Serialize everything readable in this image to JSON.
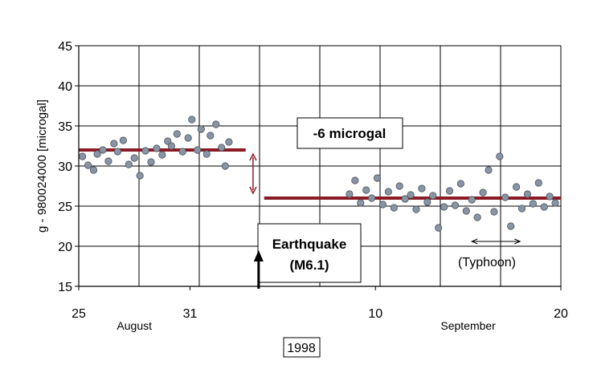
{
  "chart_data": {
    "type": "scatter",
    "title": "",
    "ylabel": "g - 980024000 [microgal]",
    "ylim": [
      15,
      45
    ],
    "yticks": [
      15,
      20,
      25,
      30,
      35,
      40,
      45
    ],
    "xlim": [
      "1998-08-25",
      "1998-09-20"
    ],
    "xticks": [
      {
        "date": "1998-08-25",
        "label": "25"
      },
      {
        "date": "1998-08-31",
        "label": "31"
      },
      {
        "date": "1998-09-10",
        "label": "10"
      },
      {
        "date": "1998-09-20",
        "label": "20"
      }
    ],
    "month_labels": [
      {
        "date": "1998-08-28",
        "label": "August"
      },
      {
        "date": "1998-09-15",
        "label": "September"
      }
    ],
    "year_label": "1998",
    "grid": true,
    "point_color": "#8a95a3",
    "mean_line_color": "#8b1a24",
    "series": [
      {
        "values": [
          [
            "1998-08-25.2",
            31.2
          ],
          [
            "1998-08-25.5",
            30.1
          ],
          [
            "1998-08-25.8",
            29.5
          ],
          [
            "1998-08-26.0",
            31.5
          ],
          [
            "1998-08-26.3",
            32.0
          ],
          [
            "1998-08-26.6",
            30.6
          ],
          [
            "1998-08-26.9",
            32.8
          ],
          [
            "1998-08-27.1",
            31.8
          ],
          [
            "1998-08-27.4",
            33.2
          ],
          [
            "1998-08-27.7",
            30.2
          ],
          [
            "1998-08-28.0",
            31.0
          ],
          [
            "1998-08-28.3",
            28.8
          ],
          [
            "1998-08-28.6",
            31.9
          ],
          [
            "1998-08-28.9",
            30.5
          ],
          [
            "1998-08-29.2",
            32.2
          ],
          [
            "1998-08-29.5",
            31.4
          ],
          [
            "1998-08-29.8",
            33.1
          ],
          [
            "1998-08-30.0",
            32.5
          ],
          [
            "1998-08-30.3",
            34.0
          ],
          [
            "1998-08-30.6",
            31.8
          ],
          [
            "1998-08-30.9",
            33.5
          ],
          [
            "1998-08-31.1",
            35.8
          ],
          [
            "1998-08-31.4",
            32.0
          ],
          [
            "1998-08-31.6",
            34.6
          ],
          [
            "1998-08-31.9",
            31.5
          ],
          [
            "1998-09-01.1",
            33.8
          ],
          [
            "1998-09-01.4",
            35.2
          ],
          [
            "1998-09-01.7",
            32.3
          ],
          [
            "1998-09-01.9",
            30.0
          ],
          [
            "1998-09-02.1",
            33.0
          ]
        ]
      },
      {
        "values": [
          [
            "1998-09-08.6",
            26.5
          ],
          [
            "1998-09-08.9",
            28.2
          ],
          [
            "1998-09-09.2",
            25.4
          ],
          [
            "1998-09-09.5",
            27.0
          ],
          [
            "1998-09-09.8",
            26.0
          ],
          [
            "1998-09-10.1",
            28.5
          ],
          [
            "1998-09-10.4",
            25.2
          ],
          [
            "1998-09-10.7",
            26.8
          ],
          [
            "1998-09-11.0",
            24.8
          ],
          [
            "1998-09-11.3",
            27.5
          ],
          [
            "1998-09-11.6",
            25.9
          ],
          [
            "1998-09-11.9",
            26.4
          ],
          [
            "1998-09-12.2",
            24.6
          ],
          [
            "1998-09-12.5",
            27.2
          ],
          [
            "1998-09-12.8",
            25.5
          ],
          [
            "1998-09-13.1",
            26.3
          ],
          [
            "1998-09-13.4",
            22.3
          ],
          [
            "1998-09-13.7",
            24.9
          ],
          [
            "1998-09-14.0",
            26.9
          ],
          [
            "1998-09-14.3",
            25.1
          ],
          [
            "1998-09-14.6",
            27.8
          ],
          [
            "1998-09-14.9",
            24.4
          ],
          [
            "1998-09-15.2",
            25.8
          ],
          [
            "1998-09-15.5",
            23.6
          ],
          [
            "1998-09-15.8",
            26.7
          ],
          [
            "1998-09-16.1",
            29.5
          ],
          [
            "1998-09-16.4",
            24.3
          ],
          [
            "1998-09-16.7",
            31.2
          ],
          [
            "1998-09-17.0",
            26.1
          ],
          [
            "1998-09-17.3",
            22.5
          ],
          [
            "1998-09-17.6",
            27.4
          ],
          [
            "1998-09-17.9",
            24.7
          ],
          [
            "1998-09-18.2",
            26.5
          ],
          [
            "1998-09-18.5",
            25.3
          ],
          [
            "1998-09-18.8",
            27.9
          ],
          [
            "1998-09-19.1",
            24.9
          ],
          [
            "1998-09-19.4",
            26.2
          ],
          [
            "1998-09-19.7",
            25.4
          ]
        ]
      }
    ],
    "mean_lines": [
      {
        "x_start": "1998-08-25",
        "x_end": "1998-09-03",
        "y": 32
      },
      {
        "x_start": "1998-09-04",
        "x_end": "1998-09-20",
        "y": 26
      }
    ],
    "annotations": {
      "offset_label": "-6 microgal",
      "offset_arrow": {
        "x": "1998-09-03.4",
        "y_top": 31.5,
        "y_bottom": 26.6
      },
      "event_label_line1": "Earthquake",
      "event_label_line2": "(M6.1)",
      "event_arrow_x": "1998-09-03.7",
      "typhoon_label": "(Typhoon)",
      "typhoon_range": [
        "1998-09-15.2",
        "1998-09-17.8"
      ]
    }
  }
}
